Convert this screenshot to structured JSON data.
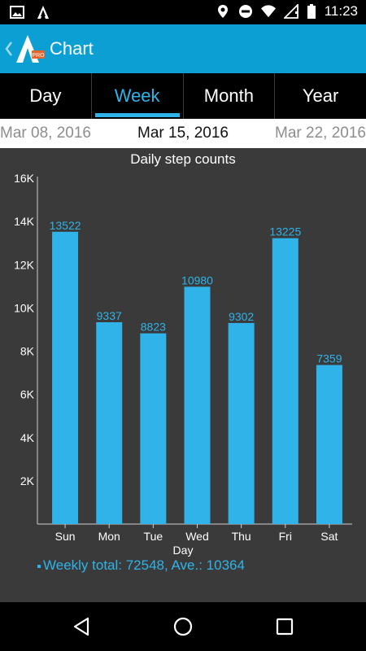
{
  "status_bar": {
    "time": "11:23",
    "left_icons": [
      "image-icon",
      "app-notification-icon"
    ],
    "right_icons": [
      "location-icon",
      "do-not-disturb-icon",
      "wifi-icon",
      "signal-icon",
      "battery-icon"
    ]
  },
  "app_bar": {
    "title": "Chart",
    "back_icon": "chevron-left-icon",
    "logo_badge": "PRO"
  },
  "tabs": [
    {
      "label": "Day",
      "active": false
    },
    {
      "label": "Week",
      "active": true
    },
    {
      "label": "Month",
      "active": false
    },
    {
      "label": "Year",
      "active": false
    }
  ],
  "date_nav": {
    "previous": "Mar 08, 2016",
    "current": "Mar 15, 2016",
    "next": "Mar 22, 2016"
  },
  "colors": {
    "accent": "#2fb3e8",
    "app_bar": "#0b9fd3",
    "chart_bg": "#3a3a3a"
  },
  "chart_data": {
    "type": "bar",
    "title": "Daily step counts",
    "xlabel": "Day",
    "ylabel": "",
    "categories": [
      "Sun",
      "Mon",
      "Tue",
      "Wed",
      "Thu",
      "Fri",
      "Sat"
    ],
    "values": [
      13522,
      9337,
      8823,
      10980,
      9302,
      13225,
      7359
    ],
    "data_labels": [
      "13522",
      "9337",
      "8823",
      "10980",
      "9302",
      "13225",
      "7359"
    ],
    "ylim": [
      0,
      16000
    ],
    "yticks": [
      2000,
      4000,
      6000,
      8000,
      10000,
      12000,
      14000,
      16000
    ],
    "ytick_labels": [
      "2K",
      "4K",
      "6K",
      "8K",
      "10K",
      "12K",
      "14K",
      "16K"
    ],
    "grid": false,
    "legend": "bottom-left",
    "summary": "Weekly total: 72548, Ave.: 10364"
  },
  "nav_bar": {
    "buttons": [
      "back-icon",
      "home-icon",
      "recents-icon"
    ]
  }
}
